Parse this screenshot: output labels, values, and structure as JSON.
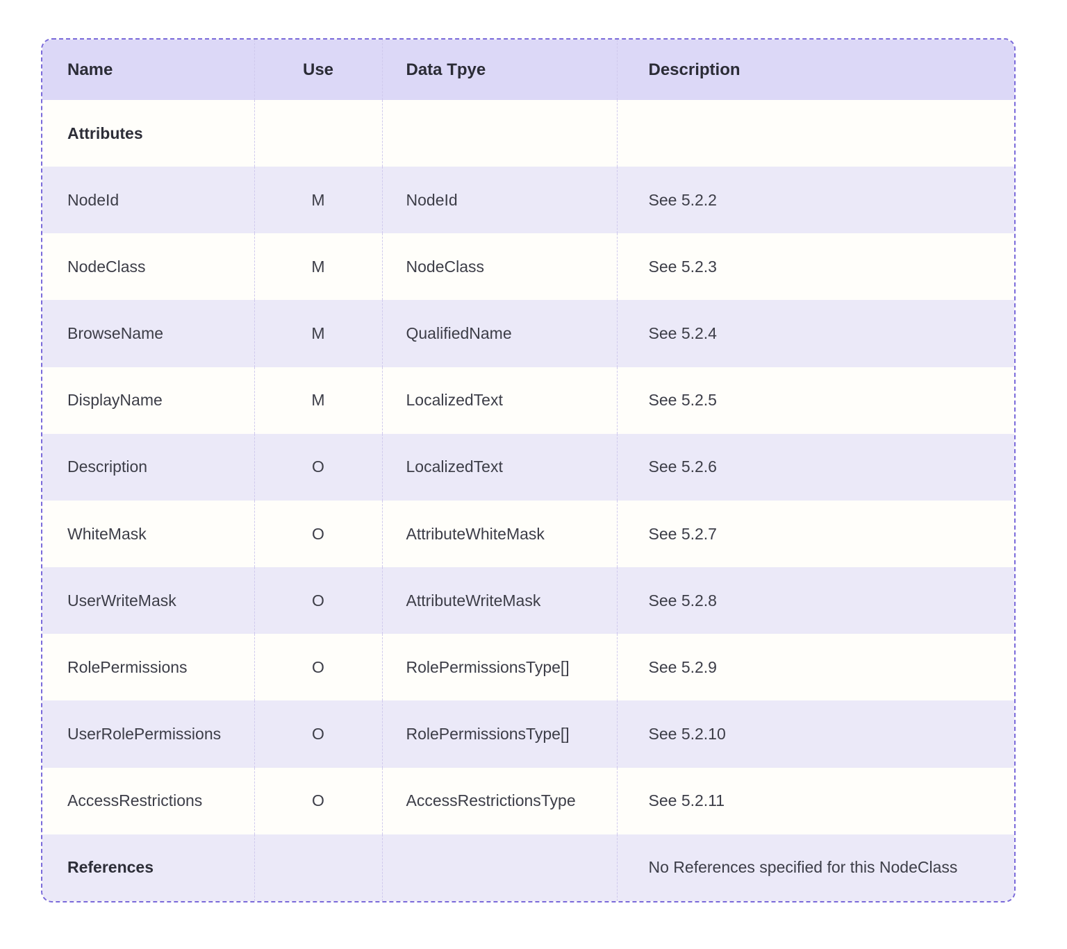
{
  "theme": {
    "header_bg": "#dcd8f7",
    "stripe_bg": "#ebe9f8",
    "row_bg": "#fffefa",
    "border": "#7a6ada",
    "separator": "#cfc9ed",
    "header_text": "#2b2c36",
    "body_text": "#3c3d47",
    "section_text": "#2d2e38"
  },
  "table": {
    "columns": [
      {
        "label": "Name"
      },
      {
        "label": "Use"
      },
      {
        "label": "Data Tpye"
      },
      {
        "label": "Description"
      }
    ],
    "rows": [
      {
        "name": "Attributes",
        "use": "",
        "data_type": "",
        "description": ""
      },
      {
        "name": "NodeId",
        "use": "M",
        "data_type": "NodeId",
        "description": "See 5.2.2"
      },
      {
        "name": "NodeClass",
        "use": "M",
        "data_type": "NodeClass",
        "description": "See 5.2.3"
      },
      {
        "name": "BrowseName",
        "use": "M",
        "data_type": "QualifiedName",
        "description": "See 5.2.4"
      },
      {
        "name": "DisplayName",
        "use": "M",
        "data_type": "LocalizedText",
        "description": "See 5.2.5"
      },
      {
        "name": "Description",
        "use": "O",
        "data_type": "LocalizedText",
        "description": "See 5.2.6"
      },
      {
        "name": "WhiteMask",
        "use": "O",
        "data_type": "AttributeWhiteMask",
        "description": "See 5.2.7"
      },
      {
        "name": "UserWriteMask",
        "use": "O",
        "data_type": "AttributeWriteMask",
        "description": "See 5.2.8"
      },
      {
        "name": "RolePermissions",
        "use": "O",
        "data_type": "RolePermissionsType[]",
        "description": "See 5.2.9"
      },
      {
        "name": "UserRolePermissions",
        "use": "O",
        "data_type": "RolePermissionsType[]",
        "description": "See 5.2.10"
      },
      {
        "name": "AccessRestrictions",
        "use": "O",
        "data_type": "AccessRestrictionsType",
        "description": "See 5.2.11"
      },
      {
        "name": "References",
        "use": "",
        "data_type": "",
        "description": "No References specified for this NodeClass"
      }
    ]
  }
}
